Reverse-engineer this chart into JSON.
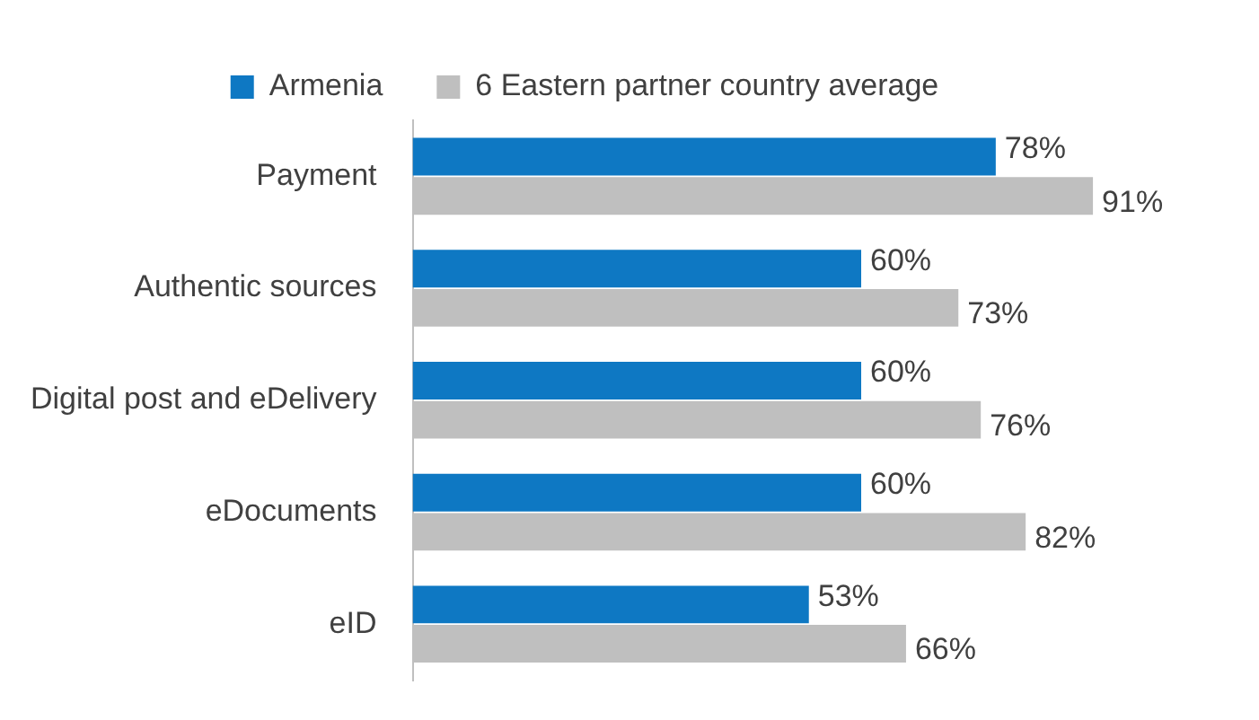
{
  "chart_data": {
    "type": "bar",
    "orientation": "horizontal",
    "categories": [
      "Payment",
      "Authentic sources",
      "Digital post and eDelivery",
      "eDocuments",
      "eID"
    ],
    "series": [
      {
        "name": "Armenia",
        "color": "#0e78c3",
        "values": [
          78,
          60,
          60,
          60,
          53
        ],
        "value_labels": [
          "78%",
          "60%",
          "60%",
          "60%",
          "53%"
        ]
      },
      {
        "name": "6 Eastern partner country average",
        "color": "#bfbfbf",
        "values": [
          91,
          73,
          76,
          82,
          66
        ],
        "value_labels": [
          "91%",
          "73%",
          "76%",
          "82%",
          "66%"
        ]
      }
    ],
    "legend": "top"
  }
}
